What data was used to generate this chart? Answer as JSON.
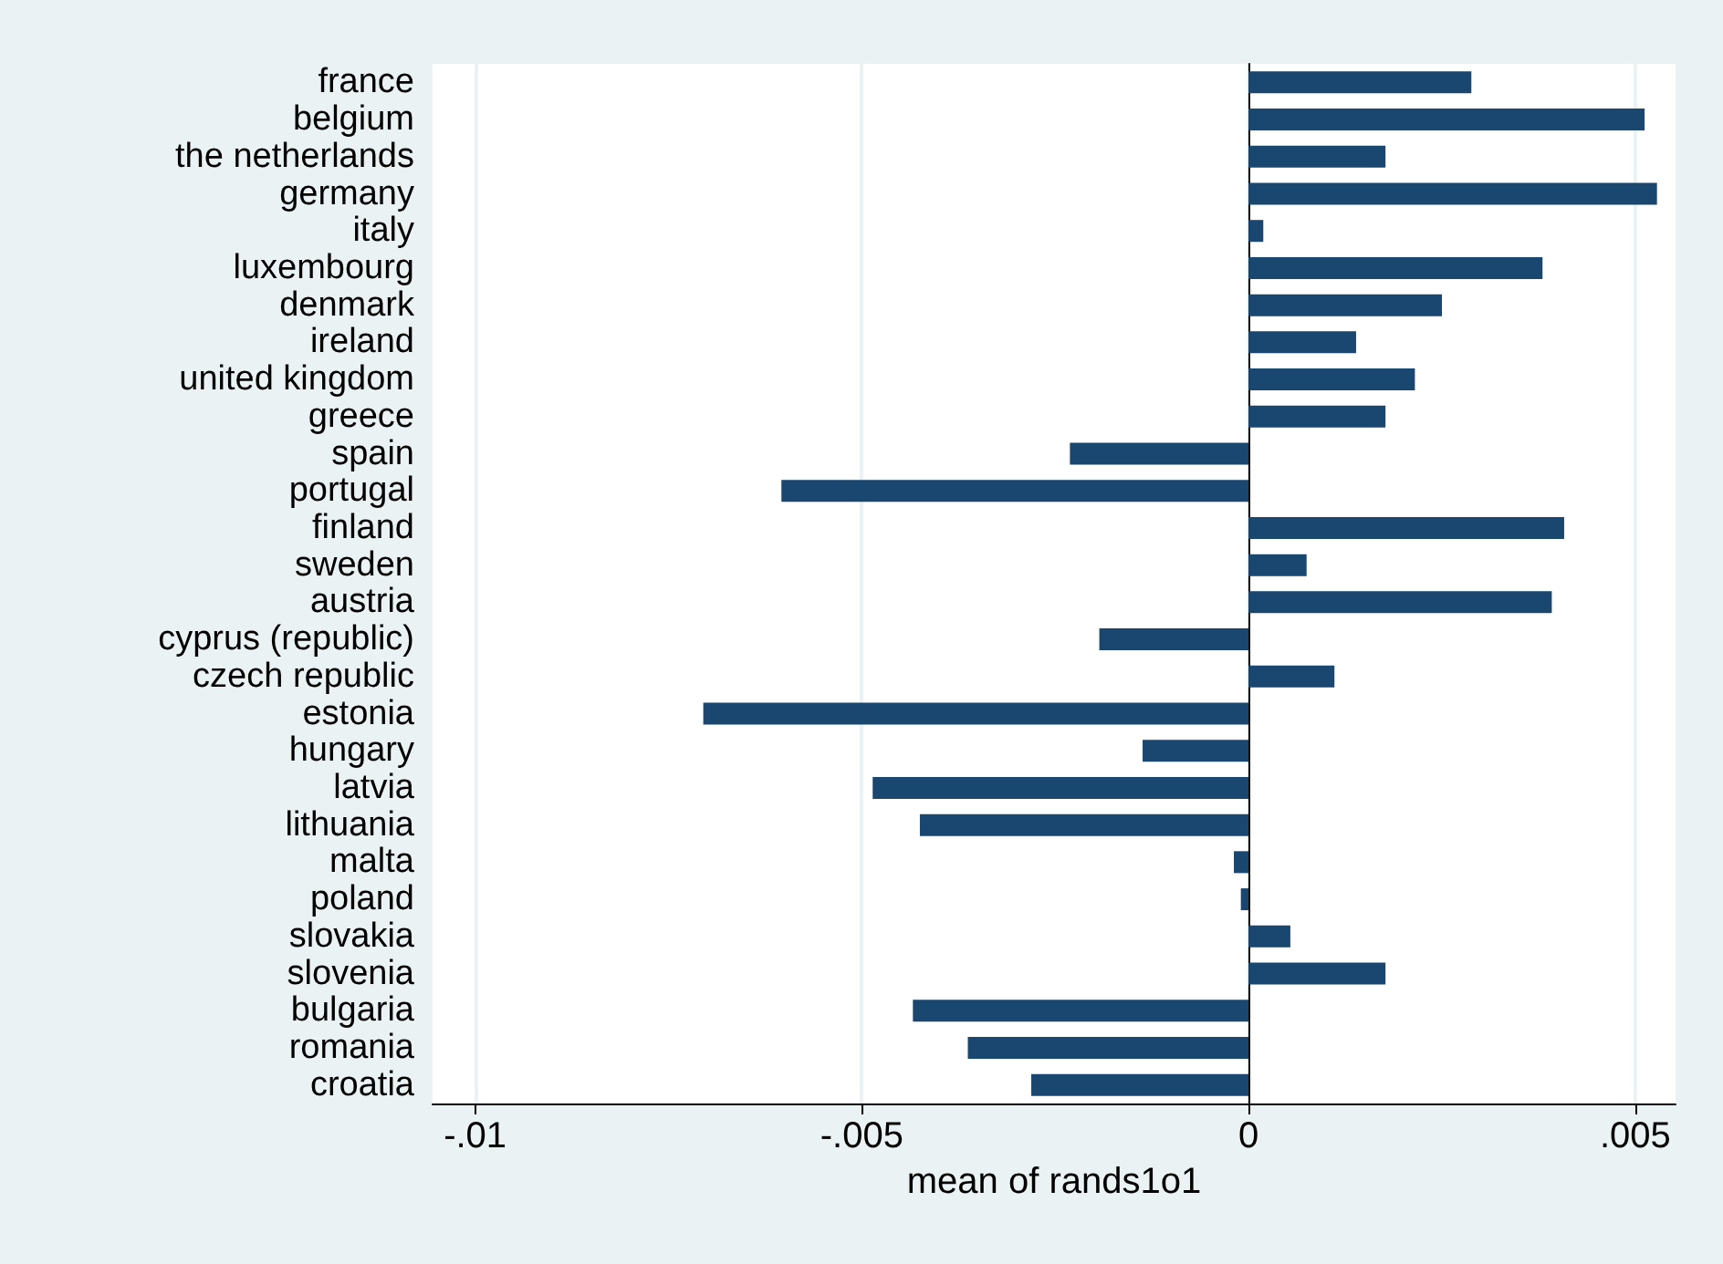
{
  "chart_data": {
    "type": "bar",
    "orientation": "horizontal",
    "xlabel": "mean of rands1o1",
    "categories": [
      "france",
      "belgium",
      "the netherlands",
      "germany",
      "italy",
      "luxembourg",
      "denmark",
      "ireland",
      "united kingdom",
      "greece",
      "spain",
      "portugal",
      "finland",
      "sweden",
      "austria",
      "cyprus (republic)",
      "czech republic",
      "estonia",
      "hungary",
      "latvia",
      "lithuania",
      "malta",
      "poland",
      "slovakia",
      "slovenia",
      "bulgaria",
      "romania",
      "croatia"
    ],
    "values": [
      0.00288,
      0.00512,
      0.00177,
      0.00528,
      0.00019,
      0.0038,
      0.0025,
      0.00139,
      0.00215,
      0.00177,
      -0.00231,
      -0.00604,
      0.00408,
      0.00075,
      0.00392,
      -0.00193,
      0.00111,
      -0.00705,
      -0.00137,
      -0.00486,
      -0.00425,
      -0.00019,
      -0.0001,
      0.00054,
      0.00177,
      -0.00434,
      -0.00363,
      -0.00281
    ],
    "color": "#1a476f",
    "xlim": [
      -0.01055,
      0.00552
    ],
    "xticks": [
      {
        "value": -0.01,
        "label": "-.01"
      },
      {
        "value": -0.005,
        "label": "-.005"
      },
      {
        "value": 0,
        "label": "0"
      },
      {
        "value": 0.005,
        "label": ".005"
      }
    ],
    "grid": "x"
  }
}
